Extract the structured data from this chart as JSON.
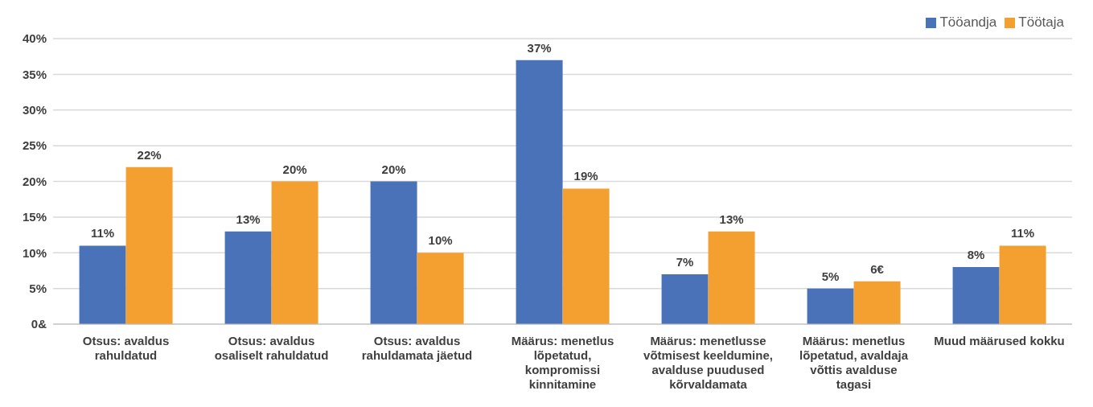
{
  "chart_data": {
    "type": "bar",
    "categories": [
      "Otsus: avaldus rahuldatud",
      "Otsus: avaldus osaliselt rahuldatud",
      "Otsus: avaldus rahuldamata jäetud",
      "Määrus: menetlus lõpetatud, kompromissi kinnitamine",
      "Määrus: menetlusse võtmisest keeldumine, avalduse puudused kõrvaldamata",
      "Määrus: menetlus lõpetatud, avaldaja võttis avalduse tagasi",
      "Muud määrused kokku"
    ],
    "series": [
      {
        "name": "Tööandja",
        "color": "#4a72b8",
        "values": [
          11,
          13,
          20,
          37,
          7,
          5,
          8
        ],
        "value_labels": [
          "11%",
          "13%",
          "20%",
          "37%",
          "7%",
          "5%",
          "8%"
        ]
      },
      {
        "name": "Töötaja",
        "color": "#f4a031",
        "values": [
          22,
          20,
          10,
          19,
          13,
          6,
          11
        ],
        "value_labels": [
          "22%",
          "20%",
          "10%",
          "19%",
          "13%",
          "6€",
          "11%"
        ]
      }
    ],
    "ylim": [
      0,
      40
    ],
    "yticks": [
      {
        "value": 0,
        "label": "0&"
      },
      {
        "value": 5,
        "label": "5%"
      },
      {
        "value": 10,
        "label": "10%"
      },
      {
        "value": 15,
        "label": "15%"
      },
      {
        "value": 20,
        "label": "20%"
      },
      {
        "value": 25,
        "label": "25%"
      },
      {
        "value": 30,
        "label": "30%"
      },
      {
        "value": 35,
        "label": "35%"
      },
      {
        "value": 40,
        "label": "40%"
      }
    ],
    "grid": "y",
    "legend": "top right"
  }
}
